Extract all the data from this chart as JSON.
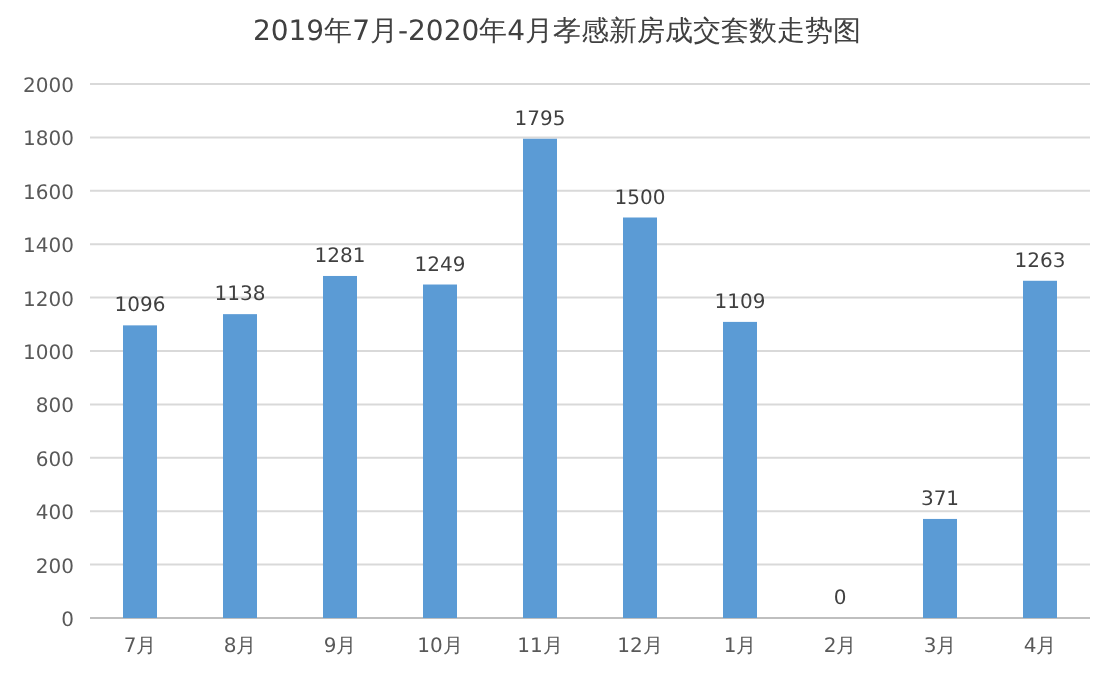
{
  "chart_data": {
    "type": "bar",
    "title": "2019年7月-2020年4月孝感新房成交套数走势图",
    "categories": [
      "7月",
      "8月",
      "9月",
      "10月",
      "11月",
      "12月",
      "1月",
      "2月",
      "3月",
      "4月"
    ],
    "values": [
      1096,
      1138,
      1281,
      1249,
      1795,
      1500,
      1109,
      0,
      371,
      1263
    ],
    "color": "#5b9bd5",
    "ylim": [
      0,
      2000
    ],
    "yticks": [
      0,
      200,
      400,
      600,
      800,
      1000,
      1200,
      1400,
      1600,
      1800,
      2000
    ],
    "grid": "y",
    "data_labels": true
  }
}
